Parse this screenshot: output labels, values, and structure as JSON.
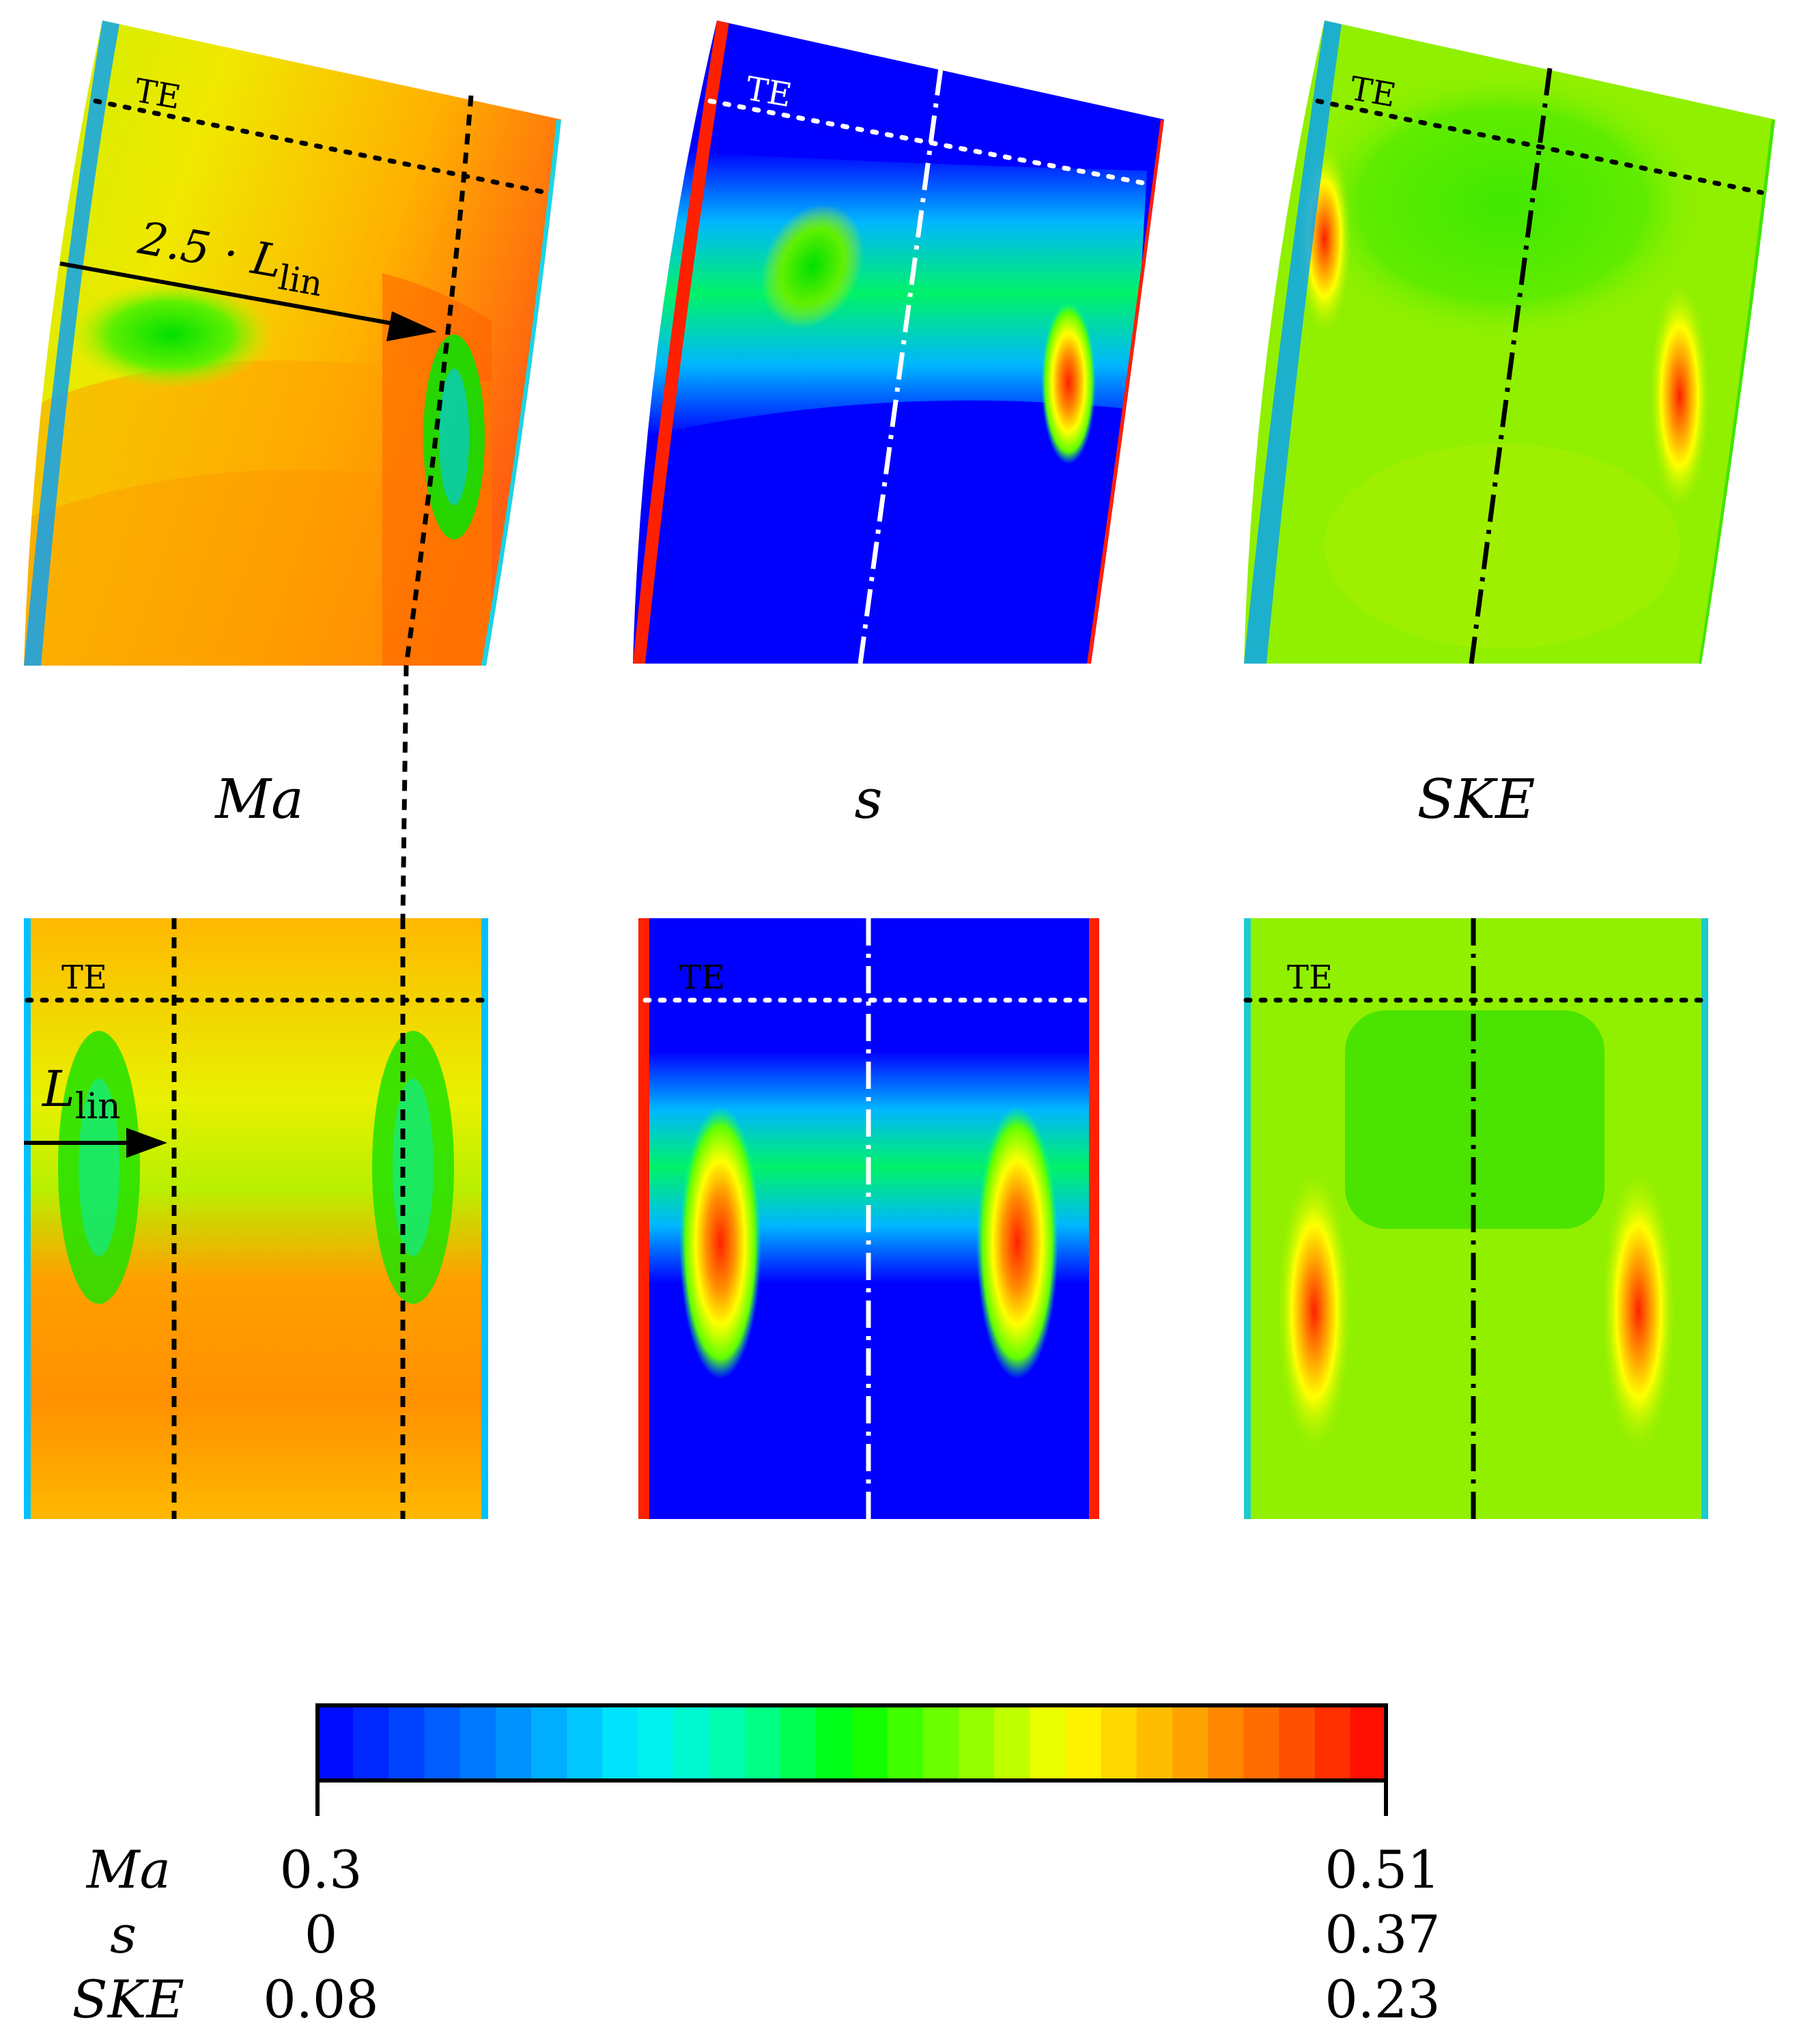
{
  "labels": {
    "te": "TE",
    "ma": "Ma",
    "s": "s",
    "ske": "SKE",
    "dist_top_coef": "2.5 · L",
    "dist_top_sub": "lin",
    "dist_bottom": "L",
    "dist_bottom_sub": "lin"
  },
  "colorbar": {
    "stops": [
      "#0000ff",
      "#0050ff",
      "#00a0ff",
      "#00f0ff",
      "#00ffa0",
      "#00ff00",
      "#80ff00",
      "#ffff00",
      "#ffb000",
      "#ff6000",
      "#ff0000"
    ],
    "rows": [
      {
        "name": "Ma",
        "min": "0.3",
        "max": "0.51"
      },
      {
        "name": "s",
        "min": "0",
        "max": "0.37"
      },
      {
        "name": "SKE",
        "min": "0.08",
        "max": "0.23"
      }
    ]
  }
}
